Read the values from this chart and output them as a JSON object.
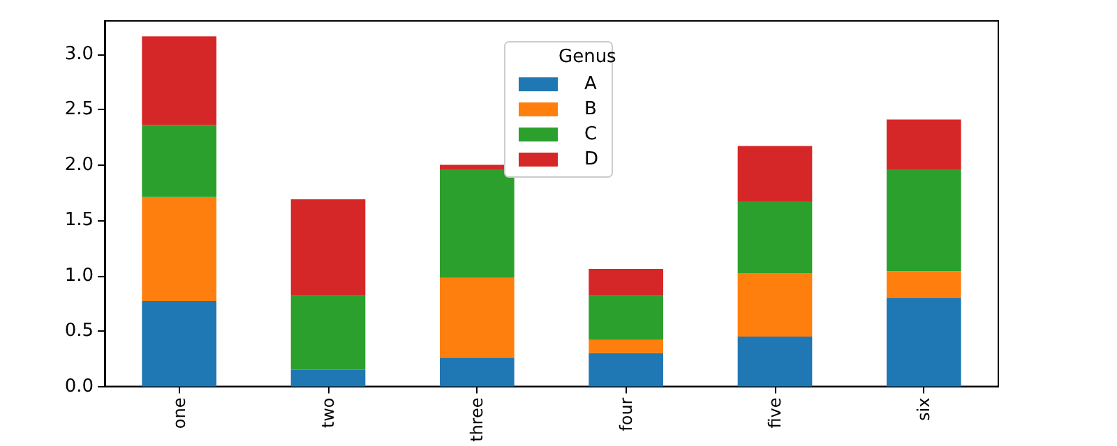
{
  "chart_data": {
    "type": "bar",
    "stacked": true,
    "legend_title": "Genus",
    "legend": "top",
    "grid": false,
    "categories": [
      "one",
      "two",
      "three",
      "four",
      "five",
      "six"
    ],
    "series": [
      {
        "name": "A",
        "color": "#1f77b4",
        "values": [
          0.77,
          0.15,
          0.26,
          0.3,
          0.45,
          0.8
        ]
      },
      {
        "name": "B",
        "color": "#ff7f0e",
        "values": [
          0.94,
          0,
          0.72,
          0.12,
          0.57,
          0.24
        ]
      },
      {
        "name": "C",
        "color": "#2ca02c",
        "values": [
          0.65,
          0.67,
          0.98,
          0.4,
          0.65,
          0.92
        ]
      },
      {
        "name": "D",
        "color": "#d62728",
        "values": [
          0.8,
          0.87,
          0.04,
          0.24,
          0.5,
          0.45
        ]
      }
    ],
    "ylim": [
      0,
      3.3
    ],
    "yticks": [
      {
        "value": 0,
        "label": "0.0"
      },
      0.5,
      {
        "value": 1,
        "label": "1.0"
      },
      1.5,
      {
        "value": 2,
        "label": "2.0"
      },
      2.5,
      {
        "value": 3,
        "label": "3.0"
      }
    ]
  }
}
